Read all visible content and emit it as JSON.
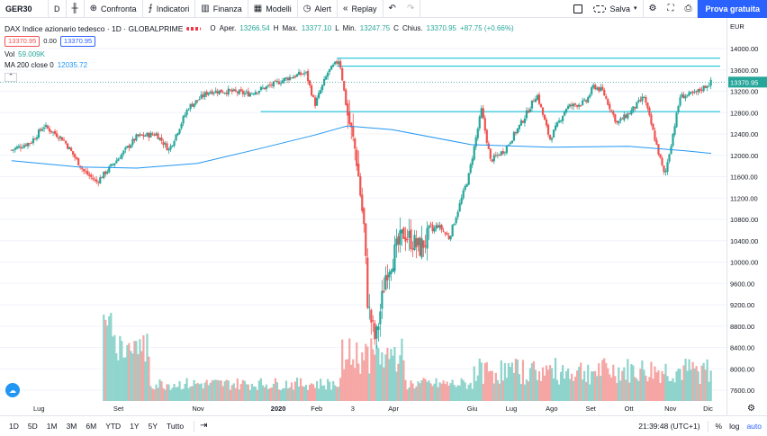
{
  "toolbar": {
    "symbol": "GER30",
    "interval": "D",
    "compare_label": "Confronta",
    "indicators_label": "Indicatori",
    "finance_label": "Finanza",
    "templates_label": "Modelli",
    "alert_label": "Alert",
    "replay_label": "Replay",
    "save_label": "Salva",
    "cta_label": "Prova gratuita"
  },
  "legend": {
    "title": "DAX Indice azionario tedesco · 1D · GLOBALPRIME",
    "o_key": "O",
    "o_label": "Aper.",
    "open": "13266.54",
    "h_key": "H",
    "h_label": "Max.",
    "high": "13377.10",
    "l_key": "L",
    "l_label": "Min.",
    "low": "13247.75",
    "c_key": "C",
    "c_label": "Chius.",
    "close": "13370.95",
    "change": "+87.75 (+0.66%)",
    "bid": "13370.95",
    "spread": "0.00",
    "ask": "13370.95",
    "vol_label": "Vol",
    "vol_value": "59.009K",
    "ma_label": "MA 200 close 0",
    "ma_value": "12035.72"
  },
  "price_axis": {
    "currency": "EUR",
    "labels": [
      "14000.00",
      "13600.00",
      "13200.00",
      "12800.00",
      "12400.00",
      "12000.00",
      "11600.00",
      "11200.00",
      "10800.00",
      "10400.00",
      "10000.00",
      "9600.00",
      "9200.00",
      "8800.00",
      "8400.00",
      "8000.00",
      "7600.00"
    ],
    "last_price": "13370.95"
  },
  "time_axis": {
    "labels": [
      "Lug",
      "Set",
      "Nov",
      "2020",
      "Feb",
      "3",
      "Apr",
      "Giu",
      "Lug",
      "Ago",
      "Set",
      "Ott",
      "Nov",
      "Dic"
    ]
  },
  "bottombar": {
    "ranges": [
      "1D",
      "5D",
      "1M",
      "3M",
      "6M",
      "YTD",
      "1Y",
      "5Y",
      "Tutto"
    ],
    "clock": "21:39:48 (UTC+1)",
    "percent_label": "%",
    "log_label": "log",
    "auto_label": "auto"
  },
  "colors": {
    "up": "#26a69a",
    "down": "#ef5350",
    "ma": "#2196f3",
    "hline": "#00bcd4",
    "accent": "#2962ff"
  },
  "chart_data": {
    "type": "candlestick",
    "title": "DAX Indice azionario tedesco · 1D · GLOBALPRIME",
    "ylim": [
      7400,
      14200
    ],
    "price_series": [
      {
        "date": "2019-06-10",
        "close": 12100
      },
      {
        "date": "2019-06-25",
        "close": 12250
      },
      {
        "date": "2019-07-05",
        "close": 12550
      },
      {
        "date": "2019-07-20",
        "close": 12300
      },
      {
        "date": "2019-08-05",
        "close": 11700
      },
      {
        "date": "2019-08-15",
        "close": 11500
      },
      {
        "date": "2019-08-30",
        "close": 11900
      },
      {
        "date": "2019-09-15",
        "close": 12350
      },
      {
        "date": "2019-09-30",
        "close": 12400
      },
      {
        "date": "2019-10-10",
        "close": 12100
      },
      {
        "date": "2019-10-25",
        "close": 12900
      },
      {
        "date": "2019-11-10",
        "close": 13200
      },
      {
        "date": "2019-11-25",
        "close": 13200
      },
      {
        "date": "2019-12-10",
        "close": 13150
      },
      {
        "date": "2019-12-27",
        "close": 13300
      },
      {
        "date": "2020-01-10",
        "close": 13450
      },
      {
        "date": "2020-01-24",
        "close": 13550
      },
      {
        "date": "2020-01-31",
        "close": 12950
      },
      {
        "date": "2020-02-10",
        "close": 13550
      },
      {
        "date": "2020-02-19",
        "close": 13800
      },
      {
        "date": "2020-02-25",
        "close": 12800
      },
      {
        "date": "2020-03-03",
        "close": 12000
      },
      {
        "date": "2020-03-09",
        "close": 10650
      },
      {
        "date": "2020-03-12",
        "close": 9200
      },
      {
        "date": "2020-03-18",
        "close": 8500
      },
      {
        "date": "2020-03-26",
        "close": 9800
      },
      {
        "date": "2020-04-09",
        "close": 10550
      },
      {
        "date": "2020-04-21",
        "close": 10250
      },
      {
        "date": "2020-05-05",
        "close": 10700
      },
      {
        "date": "2020-05-14",
        "close": 10450
      },
      {
        "date": "2020-05-29",
        "close": 11600
      },
      {
        "date": "2020-06-08",
        "close": 12850
      },
      {
        "date": "2020-06-15",
        "close": 11900
      },
      {
        "date": "2020-06-26",
        "close": 12100
      },
      {
        "date": "2020-07-10",
        "close": 12650
      },
      {
        "date": "2020-07-21",
        "close": 13150
      },
      {
        "date": "2020-07-31",
        "close": 12300
      },
      {
        "date": "2020-08-13",
        "close": 12900
      },
      {
        "date": "2020-08-28",
        "close": 13000
      },
      {
        "date": "2020-09-03",
        "close": 13300
      },
      {
        "date": "2020-09-10",
        "close": 13200
      },
      {
        "date": "2020-09-21",
        "close": 12600
      },
      {
        "date": "2020-10-01",
        "close": 12800
      },
      {
        "date": "2020-10-12",
        "close": 13100
      },
      {
        "date": "2020-10-28",
        "close": 11600
      },
      {
        "date": "2020-11-09",
        "close": 13100
      },
      {
        "date": "2020-11-20",
        "close": 13150
      },
      {
        "date": "2020-12-03",
        "close": 13370.95
      }
    ],
    "ma_200": [
      {
        "date": "2019-06-10",
        "value": 11900
      },
      {
        "date": "2019-08-01",
        "value": 11780
      },
      {
        "date": "2019-09-15",
        "value": 11760
      },
      {
        "date": "2019-11-01",
        "value": 11850
      },
      {
        "date": "2019-12-15",
        "value": 12100
      },
      {
        "date": "2020-01-31",
        "value": 12380
      },
      {
        "date": "2020-02-25",
        "value": 12550
      },
      {
        "date": "2020-03-31",
        "value": 12480
      },
      {
        "date": "2020-05-31",
        "value": 12200
      },
      {
        "date": "2020-07-31",
        "value": 12150
      },
      {
        "date": "2020-09-30",
        "value": 12170
      },
      {
        "date": "2020-11-15",
        "value": 12080
      },
      {
        "date": "2020-12-03",
        "value": 12035.72
      }
    ],
    "horizontal_lines": [
      13820,
      13670,
      12820
    ],
    "dotted_last_price": 13370.95
  }
}
